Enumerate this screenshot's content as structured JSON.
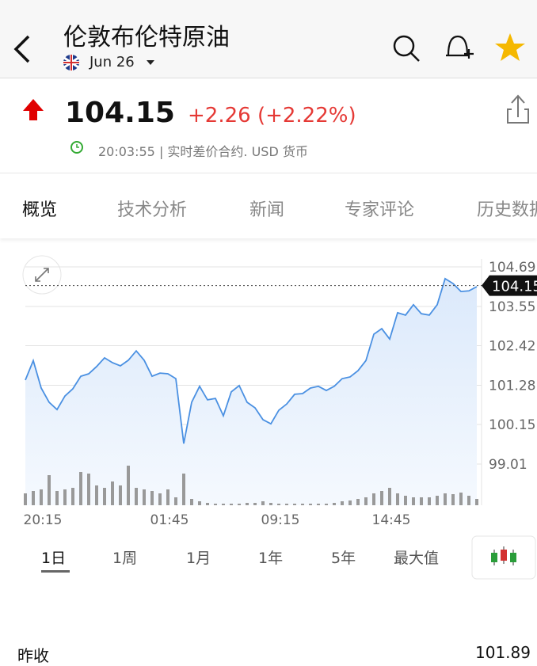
{
  "header": {
    "title": "伦敦布伦特原油",
    "date": "Jun 26"
  },
  "quote": {
    "price": "104.15",
    "change": "+2.26 (+2.22%)",
    "time": "20:03:55 | 实时差价合约.  USD 货币"
  },
  "tabs": [
    "概览",
    "技术分析",
    "新闻",
    "专家评论",
    "历史数据"
  ],
  "ranges": [
    "1日",
    "1周",
    "1月",
    "1年",
    "5年",
    "最大值"
  ],
  "summary": {
    "label": "昨收",
    "value": "101.89"
  },
  "chart_data": {
    "type": "line",
    "color": "#4a90e2",
    "categories": [
      null,
      "20:15",
      null,
      null,
      null,
      null,
      null,
      null,
      null,
      null,
      null,
      null,
      null,
      null,
      null,
      null,
      null,
      "01:45",
      null,
      null,
      null,
      null,
      null,
      null,
      null,
      null,
      null,
      null,
      null,
      null,
      null,
      "09:15",
      null,
      null,
      null,
      null,
      null,
      null,
      null,
      null,
      null,
      null,
      null,
      null,
      null,
      "14:45",
      null,
      null,
      null,
      null,
      null,
      null,
      null,
      null,
      null,
      null,
      null,
      null
    ],
    "values": [
      101.43,
      101.99,
      101.2,
      100.79,
      100.58,
      100.97,
      101.18,
      101.54,
      101.61,
      101.82,
      102.07,
      101.93,
      101.84,
      102.0,
      102.27,
      102.0,
      101.54,
      101.63,
      101.61,
      101.47,
      99.6,
      100.79,
      101.25,
      100.86,
      100.9,
      100.4,
      101.09,
      101.27,
      100.79,
      100.63,
      100.29,
      100.17,
      100.56,
      100.74,
      101.02,
      101.04,
      101.2,
      101.25,
      101.13,
      101.25,
      101.47,
      101.52,
      101.7,
      101.99,
      102.75,
      102.91,
      102.61,
      103.37,
      103.3,
      103.6,
      103.34,
      103.3,
      103.6,
      104.35,
      104.21,
      103.98,
      104.0,
      104.12
    ],
    "volume": [
      15,
      18,
      20,
      38,
      18,
      20,
      22,
      42,
      40,
      25,
      22,
      30,
      25,
      50,
      22,
      20,
      18,
      15,
      20,
      10,
      40,
      8,
      5,
      3,
      2,
      2,
      2,
      2,
      3,
      3,
      5,
      3,
      2,
      2,
      2,
      2,
      2,
      2,
      2,
      3,
      5,
      6,
      8,
      10,
      15,
      18,
      22,
      15,
      12,
      10,
      10,
      10,
      12,
      15,
      14,
      16,
      12,
      8
    ],
    "last": 104.15,
    "ylim": [
      99.01,
      104.69
    ],
    "yticks": [
      104.69,
      103.55,
      102.42,
      101.28,
      100.15,
      99.01
    ],
    "grid": true
  }
}
